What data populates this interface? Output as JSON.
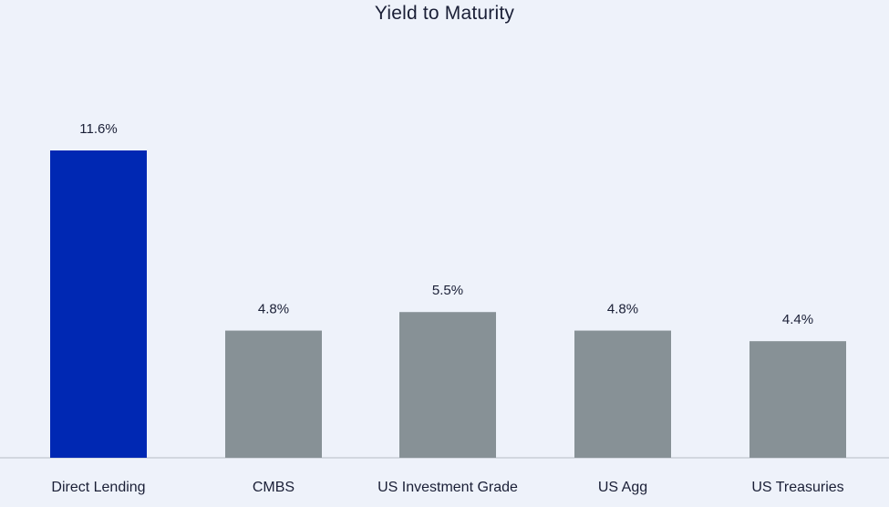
{
  "chart_data": {
    "type": "bar",
    "title": "Yield to Maturity",
    "categories": [
      "Direct Lending",
      "CMBS",
      "US Investment Grade",
      "US Agg",
      "US Treasuries"
    ],
    "values": [
      11.6,
      4.8,
      5.5,
      4.8,
      4.4
    ],
    "value_labels": [
      "11.6%",
      "4.8%",
      "5.5%",
      "4.8%",
      "4.4%"
    ],
    "xlabel": "",
    "ylabel": "",
    "ylim": [
      0,
      11.6
    ],
    "grid": false,
    "legend": "none",
    "colors": {
      "highlight": "#0028b3",
      "default": "#879196",
      "axis": "#c9ced6"
    },
    "highlight_index": 0
  }
}
